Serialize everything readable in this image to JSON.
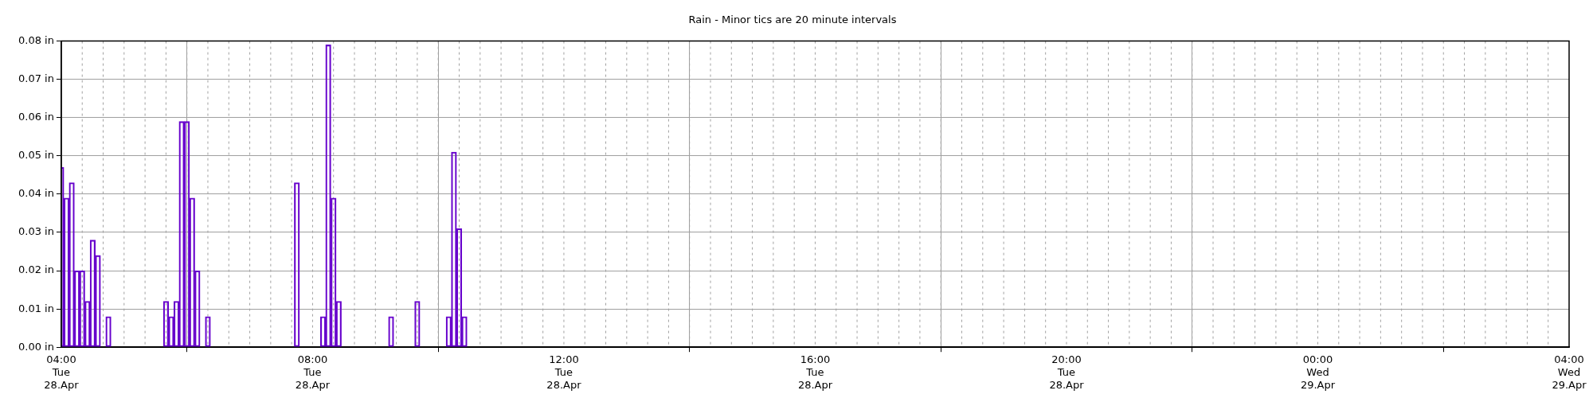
{
  "chart_data": {
    "type": "bar",
    "title": "Rain - Minor tics are 20 minute intervals",
    "x": [
      "--04-28T04:00",
      "--04-28T04:05",
      "--04-28T04:10",
      "--04-28T04:15",
      "--04-28T04:20",
      "--04-28T04:25",
      "--04-28T04:30",
      "--04-28T04:35",
      "--04-28T04:45",
      "--04-28T05:40",
      "--04-28T05:45",
      "--04-28T05:50",
      "--04-28T05:55",
      "--04-28T06:00",
      "--04-28T06:05",
      "--04-28T06:10",
      "--04-28T06:20",
      "--04-28T07:45",
      "--04-28T08:10",
      "--04-28T08:15",
      "--04-28T08:20",
      "--04-28T08:25",
      "--04-28T09:15",
      "--04-28T09:40",
      "--04-28T10:10",
      "--04-28T10:15",
      "--04-28T10:20",
      "--04-28T10:25"
    ],
    "values": [
      0.047,
      0.039,
      0.043,
      0.02,
      0.02,
      0.012,
      0.028,
      0.024,
      0.008,
      0.012,
      0.008,
      0.012,
      0.059,
      0.059,
      0.039,
      0.02,
      0.008,
      0.043,
      0.008,
      0.079,
      0.039,
      0.012,
      0.008,
      0.012,
      0.008,
      0.051,
      0.031,
      0.008
    ],
    "color": "#6600cc",
    "xlim": [
      "--04-28T04:00",
      "--04-29T04:00"
    ],
    "xticks": [
      {
        "value": "--04-28T04:00",
        "label": "04:00\nTue\n28.Apr"
      },
      {
        "value": "--04-28T08:00",
        "label": "08:00\nTue\n28.Apr"
      },
      {
        "value": "--04-28T12:00",
        "label": "12:00\nTue\n28.Apr"
      },
      {
        "value": "--04-28T16:00",
        "label": "16:00\nTue\n28.Apr"
      },
      {
        "value": "--04-28T20:00",
        "label": "20:00\nTue\n28.Apr"
      },
      {
        "value": "--04-29T00:00",
        "label": "00:00\nWed\n29.Apr"
      },
      {
        "value": "--04-29T04:00",
        "label": "04:00\nWed\n29.Apr"
      }
    ],
    "ylim": [
      0,
      0.08
    ],
    "yticks": [
      {
        "value": 0,
        "label": "0.00 in"
      },
      {
        "value": 0.01,
        "label": "0.01 in"
      },
      {
        "value": 0.02,
        "label": "0.02 in"
      },
      {
        "value": 0.03,
        "label": "0.03 in"
      },
      {
        "value": 0.04,
        "label": "0.04 in"
      },
      {
        "value": 0.05,
        "label": "0.05 in"
      },
      {
        "value": 0.06,
        "label": "0.06 in"
      },
      {
        "value": 0.07,
        "label": "0.07 in"
      },
      {
        "value": 0.08,
        "label": "0.08 in"
      }
    ],
    "grid": true
  }
}
